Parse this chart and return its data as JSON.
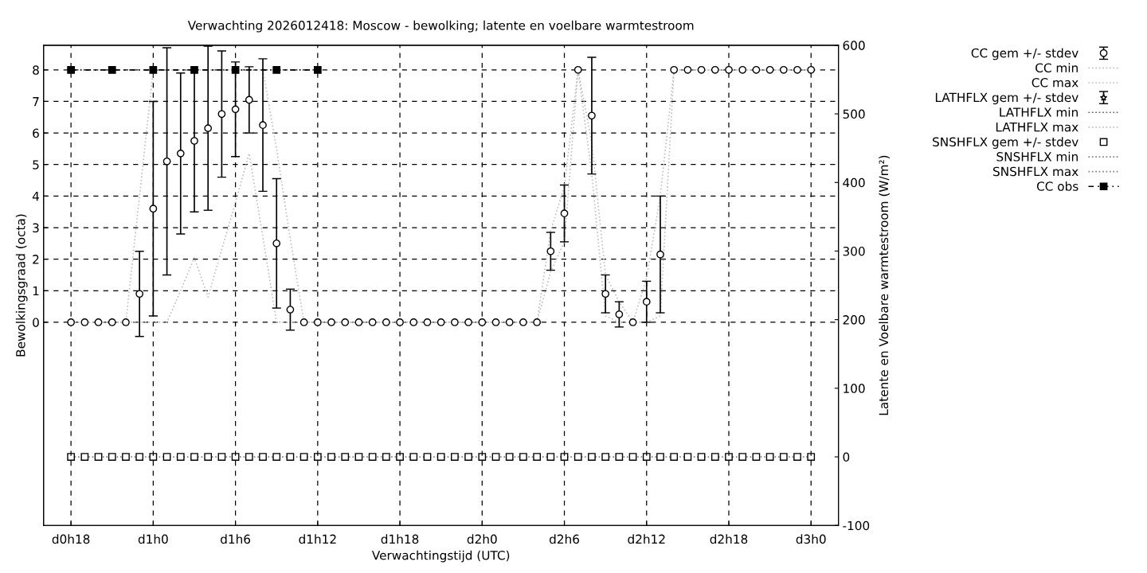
{
  "chart_data": {
    "type": "line",
    "title": "Verwachting 2026012418: Moscow - bewolking; latente en voelbare warmtestroom",
    "xlabel": "Verwachtingstijd (UTC)",
    "ylabel": "Bewolkingsgraad (octa)",
    "y2label": "Latente en Voelbare warmtestroom (W/m²)",
    "categories": [
      "d0h18",
      null,
      null,
      null,
      null,
      null,
      "d1h0",
      null,
      null,
      null,
      null,
      null,
      "d1h6",
      null,
      null,
      null,
      null,
      null,
      "d1h12",
      null,
      null,
      null,
      null,
      null,
      "d1h18",
      null,
      null,
      null,
      null,
      null,
      "d2h0",
      null,
      null,
      null,
      null,
      null,
      "d2h6",
      null,
      null,
      null,
      null,
      null,
      "d2h12",
      null,
      null,
      null,
      null,
      null,
      "d2h18",
      null,
      null,
      null,
      null,
      null,
      "d3h0"
    ],
    "ylim": [
      -6.44,
      8.78
    ],
    "yticks": [
      0,
      1,
      2,
      3,
      4,
      5,
      6,
      7,
      8
    ],
    "y2lim": [
      -100,
      600
    ],
    "y2ticks": [
      -100,
      0,
      100,
      200,
      300,
      400,
      500,
      600
    ],
    "grid": true,
    "legend": "right",
    "series": [
      {
        "name": "CC gem +/- stdev",
        "type": "scatter",
        "marker": "circle",
        "color": "#000000",
        "values": [
          0,
          0,
          0,
          0,
          0,
          0.9,
          3.6,
          5.1,
          5.35,
          5.75,
          6.15,
          6.6,
          6.75,
          7.05,
          6.25,
          2.5,
          0.4,
          0,
          0,
          0,
          0,
          0,
          0,
          0,
          0,
          0,
          0,
          0,
          0,
          0,
          0,
          0,
          0,
          0,
          0,
          2.25,
          3.45,
          8,
          6.55,
          0.9,
          0.25,
          0,
          0.65,
          2.15,
          8,
          8,
          8,
          8,
          8,
          8,
          8,
          8,
          8,
          8,
          8
        ],
        "errors": [
          null,
          null,
          null,
          null,
          null,
          1.35,
          3.4,
          3.6,
          2.55,
          2.25,
          2.6,
          2.0,
          1.5,
          1.05,
          2.1,
          2.05,
          0.65,
          null,
          null,
          null,
          null,
          null,
          null,
          null,
          null,
          null,
          null,
          null,
          null,
          null,
          null,
          null,
          null,
          null,
          null,
          0.6,
          0.9,
          null,
          1.85,
          0.6,
          0.4,
          null,
          0.65,
          1.85,
          null,
          null,
          null,
          null,
          null,
          null,
          null,
          null,
          null,
          null,
          null
        ]
      },
      {
        "name": "CC min",
        "line_style": "dotted",
        "color": "#c0c0c0",
        "values": [
          0,
          0,
          0,
          0,
          0,
          0,
          0,
          0,
          1.0,
          2.05,
          0.8,
          2.3,
          3.8,
          5.35,
          2.7,
          0,
          0,
          0,
          0,
          0,
          0,
          0,
          0,
          0,
          0,
          0,
          0,
          0,
          0,
          0,
          0,
          0,
          0,
          0,
          0,
          1.6,
          2.55,
          8,
          4.7,
          0.2,
          0,
          0,
          0,
          0.2,
          8,
          8,
          8,
          8,
          8,
          8,
          8,
          8,
          8,
          8,
          8
        ]
      },
      {
        "name": "CC max",
        "line_style": "dotted",
        "color": "#c0c0c0",
        "values": [
          0,
          0,
          0,
          0,
          0,
          4,
          8,
          8,
          8,
          8,
          8,
          8,
          8,
          8,
          8,
          5.5,
          2.65,
          0,
          0,
          0,
          0,
          0,
          0,
          0,
          0,
          0,
          0,
          0,
          0,
          0,
          0,
          0,
          0,
          0,
          0,
          2.9,
          4.3,
          8,
          5.7,
          1.5,
          0.65,
          0,
          1.4,
          4.0,
          8,
          8,
          8,
          8,
          8,
          8,
          8,
          8,
          8,
          8,
          8
        ]
      },
      {
        "name": "LATHFLX gem +/- stdev",
        "type": "scatter",
        "marker": "star",
        "axis": "y2",
        "color": "#000000",
        "values": [
          null,
          null,
          null,
          null,
          null,
          null,
          null,
          null,
          null,
          null,
          null,
          null,
          null,
          null,
          null,
          null,
          null,
          null,
          null,
          null,
          null,
          null,
          null,
          null,
          null,
          null,
          null,
          null,
          null,
          null,
          null,
          null,
          null,
          null,
          null,
          null,
          null,
          null,
          null,
          null,
          null,
          null,
          null,
          null,
          null,
          null,
          null,
          null,
          null,
          null,
          null,
          null,
          null,
          null,
          null
        ],
        "errors": [
          null,
          null,
          null,
          null,
          null,
          null,
          null,
          null,
          null,
          null,
          null,
          null,
          null,
          null,
          null,
          null,
          null,
          null,
          null,
          null,
          null,
          null,
          null,
          null,
          null,
          null,
          null,
          null,
          null,
          null,
          null,
          null,
          null,
          null,
          null,
          null,
          null,
          null,
          null,
          null,
          null,
          null,
          null,
          null,
          null,
          null,
          null,
          null,
          null,
          null,
          null,
          null,
          null,
          null,
          null
        ]
      },
      {
        "name": "LATHFLX min",
        "type": "line",
        "line_style": "dotted",
        "axis": "y2",
        "color": "#606060",
        "values": [
          null,
          null,
          null,
          null,
          null,
          null,
          null,
          null,
          null,
          null,
          null,
          null,
          null,
          null,
          null,
          null,
          null,
          null,
          null,
          null,
          null,
          null,
          null,
          null,
          null,
          null,
          null,
          null,
          null,
          null,
          null,
          null,
          null,
          null,
          null,
          null,
          null,
          null,
          null,
          null,
          null,
          null,
          null,
          null,
          null,
          null,
          null,
          null,
          null,
          null,
          null,
          null,
          null,
          null,
          null
        ]
      },
      {
        "name": "LATHFLX max",
        "type": "line",
        "line_style": "dotted",
        "axis": "y2",
        "color": "#c0c0c0",
        "values": [
          null,
          null,
          null,
          null,
          null,
          null,
          null,
          null,
          null,
          null,
          null,
          null,
          null,
          null,
          null,
          null,
          null,
          null,
          null,
          null,
          null,
          null,
          null,
          null,
          null,
          null,
          null,
          null,
          null,
          null,
          null,
          null,
          null,
          null,
          null,
          null,
          null,
          null,
          null,
          null,
          null,
          null,
          null,
          null,
          null,
          null,
          null,
          null,
          null,
          null,
          null,
          null,
          null,
          null,
          null
        ]
      },
      {
        "name": "SNSHFLX gem +/- stdev",
        "type": "scatter",
        "marker": "square",
        "axis": "y2",
        "color": "#000000",
        "values": [
          0,
          0,
          0,
          0,
          0,
          0,
          0,
          0,
          0,
          0,
          0,
          0,
          0,
          0,
          0,
          0,
          0,
          0,
          0,
          0,
          0,
          0,
          0,
          0,
          0,
          0,
          0,
          0,
          0,
          0,
          0,
          0,
          0,
          0,
          0,
          0,
          0,
          0,
          0,
          0,
          0,
          0,
          0,
          0,
          0,
          0,
          0,
          0,
          0,
          0,
          0,
          0,
          0,
          0,
          0
        ]
      },
      {
        "name": "SNSHFLX min",
        "type": "line",
        "line_style": "dotted",
        "axis": "y2",
        "color": "#808080",
        "values": [
          0,
          0,
          0,
          0,
          0,
          0,
          0,
          0,
          0,
          0,
          0,
          0,
          0,
          0,
          0,
          0,
          0,
          0,
          0,
          0,
          0,
          0,
          0,
          0,
          0,
          0,
          0,
          0,
          0,
          0,
          0,
          0,
          0,
          0,
          0,
          0,
          0,
          0,
          0,
          0,
          0,
          0,
          0,
          0,
          0,
          0,
          0,
          0,
          0,
          0,
          0,
          0,
          0,
          0,
          0
        ]
      },
      {
        "name": "SNSHFLX max",
        "type": "line",
        "line_style": "dotted",
        "axis": "y2",
        "color": "#808080",
        "values": [
          null,
          null,
          null,
          null,
          null,
          null,
          null,
          null,
          null,
          null,
          null,
          null,
          null,
          null,
          null,
          null,
          null,
          null,
          null,
          null,
          null,
          null,
          null,
          null,
          null,
          null,
          null,
          null,
          null,
          null,
          null,
          null,
          null,
          null,
          null,
          null,
          null,
          null,
          null,
          null,
          null,
          null,
          null,
          null,
          null,
          null,
          null,
          null,
          null,
          null,
          null,
          null,
          null,
          null,
          null
        ]
      },
      {
        "name": "CC obs",
        "line_style": "dashed",
        "marker": "square",
        "color": "#000000",
        "values": [
          8,
          null,
          null,
          8,
          null,
          null,
          8,
          null,
          null,
          8,
          null,
          null,
          8,
          null,
          null,
          8,
          null,
          null,
          8,
          null,
          null,
          null,
          null,
          null,
          null,
          null,
          null,
          null,
          null,
          null,
          null,
          null,
          null,
          null,
          null,
          null,
          null,
          null,
          null,
          null,
          null,
          null,
          null,
          null,
          null,
          null,
          null,
          null,
          null,
          null,
          null,
          null,
          null,
          null,
          null
        ]
      }
    ]
  }
}
